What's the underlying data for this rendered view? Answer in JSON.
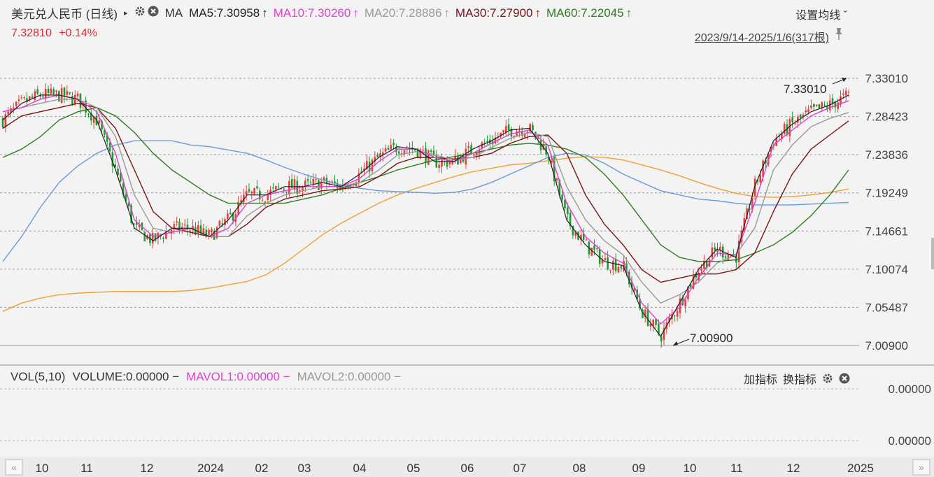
{
  "header": {
    "title": "美元兑人民币 (日线)",
    "ma_label": "MA",
    "ma_values": [
      {
        "label": "MA5:7.30958",
        "color": "#222222",
        "arrow": "↑"
      },
      {
        "label": "MA10:7.30260",
        "color": "#e040d0",
        "arrow": "↑"
      },
      {
        "label": "MA20:7.28886",
        "color": "#999999",
        "arrow": "↑"
      },
      {
        "label": "MA30:7.27900",
        "color": "#7a1414",
        "arrow": "↑"
      },
      {
        "label": "MA60:7.22045",
        "color": "#2e7d1e",
        "arrow": "↑"
      }
    ],
    "settings_label": "设置均线 ˇ",
    "price": "7.32810",
    "change": "+0.14%",
    "date_range": "2023/9/14-2025/1/6(317根)"
  },
  "volume_panel": {
    "vol_label": "VOL(5,10)",
    "volume": "VOLUME:0.00000 −",
    "mavol1": "MAVOL1:0.00000 −",
    "mavol2": "MAVOL2:0.00000 −",
    "add_indicator": "加指标",
    "switch_indicator": "换指标"
  },
  "chart_data": {
    "type": "line",
    "ylim": [
      7.0,
      7.34
    ],
    "y_ticks": [
      "7.33010",
      "7.28423",
      "7.23836",
      "7.19249",
      "7.14661",
      "7.10074",
      "7.05487",
      "7.00900"
    ],
    "vol_ticks": [
      "0.00000",
      "0.00000"
    ],
    "x_ticks": [
      "10",
      "11",
      "12",
      "2024",
      "02",
      "03",
      "04",
      "05",
      "06",
      "07",
      "08",
      "09",
      "10",
      "11",
      "12",
      "2025"
    ],
    "annotations": {
      "high": "7.33010",
      "low": "7.00900"
    },
    "series": [
      {
        "name": "MA5",
        "color": "#222222",
        "values": [
          7.28,
          7.3,
          7.31,
          7.31,
          7.305,
          7.28,
          7.22,
          7.15,
          7.135,
          7.15,
          7.15,
          7.14,
          7.16,
          7.19,
          7.19,
          7.2,
          7.2,
          7.205,
          7.2,
          7.215,
          7.235,
          7.248,
          7.245,
          7.23,
          7.23,
          7.245,
          7.255,
          7.268,
          7.27,
          7.24,
          7.16,
          7.13,
          7.11,
          7.105,
          7.05,
          7.02,
          7.06,
          7.1,
          7.125,
          7.115,
          7.2,
          7.255,
          7.275,
          7.29,
          7.298,
          7.31
        ]
      },
      {
        "name": "MA10",
        "color": "#e040d0",
        "values": [
          7.29,
          7.295,
          7.305,
          7.31,
          7.305,
          7.29,
          7.24,
          7.16,
          7.14,
          7.145,
          7.15,
          7.14,
          7.15,
          7.18,
          7.19,
          7.195,
          7.2,
          7.2,
          7.2,
          7.21,
          7.23,
          7.245,
          7.245,
          7.235,
          7.23,
          7.24,
          7.252,
          7.263,
          7.268,
          7.25,
          7.18,
          7.14,
          7.12,
          7.108,
          7.06,
          7.035,
          7.055,
          7.09,
          7.12,
          7.118,
          7.18,
          7.25,
          7.268,
          7.285,
          7.295,
          7.303
        ]
      },
      {
        "name": "MA20",
        "color": "#999999",
        "values": [
          7.29,
          7.295,
          7.3,
          7.305,
          7.305,
          7.295,
          7.26,
          7.19,
          7.15,
          7.145,
          7.15,
          7.14,
          7.14,
          7.165,
          7.18,
          7.19,
          7.195,
          7.2,
          7.2,
          7.205,
          7.22,
          7.238,
          7.242,
          7.238,
          7.232,
          7.235,
          7.247,
          7.258,
          7.265,
          7.26,
          7.2,
          7.16,
          7.135,
          7.118,
          7.085,
          7.06,
          7.07,
          7.085,
          7.108,
          7.118,
          7.15,
          7.22,
          7.25,
          7.272,
          7.282,
          7.289
        ]
      },
      {
        "name": "MA30",
        "color": "#7a1414",
        "values": [
          7.27,
          7.285,
          7.29,
          7.295,
          7.3,
          7.295,
          7.27,
          7.22,
          7.17,
          7.15,
          7.145,
          7.14,
          7.14,
          7.155,
          7.175,
          7.185,
          7.19,
          7.195,
          7.197,
          7.2,
          7.212,
          7.228,
          7.235,
          7.235,
          7.233,
          7.235,
          7.24,
          7.252,
          7.26,
          7.262,
          7.24,
          7.19,
          7.155,
          7.13,
          7.1,
          7.085,
          7.09,
          7.095,
          7.095,
          7.1,
          7.12,
          7.17,
          7.215,
          7.245,
          7.262,
          7.279
        ]
      },
      {
        "name": "MA60",
        "color": "#2e7d1e",
        "values": [
          7.235,
          7.245,
          7.26,
          7.28,
          7.29,
          7.295,
          7.285,
          7.265,
          7.24,
          7.22,
          7.205,
          7.19,
          7.18,
          7.18,
          7.18,
          7.18,
          7.185,
          7.19,
          7.198,
          7.205,
          7.212,
          7.22,
          7.226,
          7.232,
          7.236,
          7.24,
          7.245,
          7.25,
          7.252,
          7.25,
          7.245,
          7.235,
          7.215,
          7.19,
          7.16,
          7.13,
          7.115,
          7.11,
          7.11,
          7.112,
          7.12,
          7.13,
          7.145,
          7.165,
          7.19,
          7.22
        ]
      },
      {
        "name": "MA120",
        "color": "#6a9bd8",
        "values": [
          7.11,
          7.14,
          7.175,
          7.205,
          7.225,
          7.24,
          7.25,
          7.255,
          7.255,
          7.255,
          7.25,
          7.248,
          7.244,
          7.24,
          7.232,
          7.223,
          7.215,
          7.208,
          7.202,
          7.198,
          7.195,
          7.194,
          7.193,
          7.192,
          7.193,
          7.197,
          7.205,
          7.215,
          7.225,
          7.235,
          7.24,
          7.238,
          7.228,
          7.215,
          7.205,
          7.195,
          7.19,
          7.185,
          7.183,
          7.18,
          7.178,
          7.178,
          7.178,
          7.179,
          7.18,
          7.181
        ]
      },
      {
        "name": "MA250",
        "color": "#f0a030",
        "values": [
          7.05,
          7.06,
          7.066,
          7.07,
          7.072,
          7.073,
          7.074,
          7.074,
          7.074,
          7.074,
          7.075,
          7.078,
          7.082,
          7.086,
          7.094,
          7.108,
          7.125,
          7.142,
          7.156,
          7.168,
          7.18,
          7.19,
          7.198,
          7.205,
          7.212,
          7.218,
          7.222,
          7.226,
          7.228,
          7.231,
          7.234,
          7.236,
          7.235,
          7.232,
          7.226,
          7.22,
          7.213,
          7.205,
          7.198,
          7.192,
          7.188,
          7.187,
          7.188,
          7.19,
          7.193,
          7.197
        ]
      }
    ]
  }
}
